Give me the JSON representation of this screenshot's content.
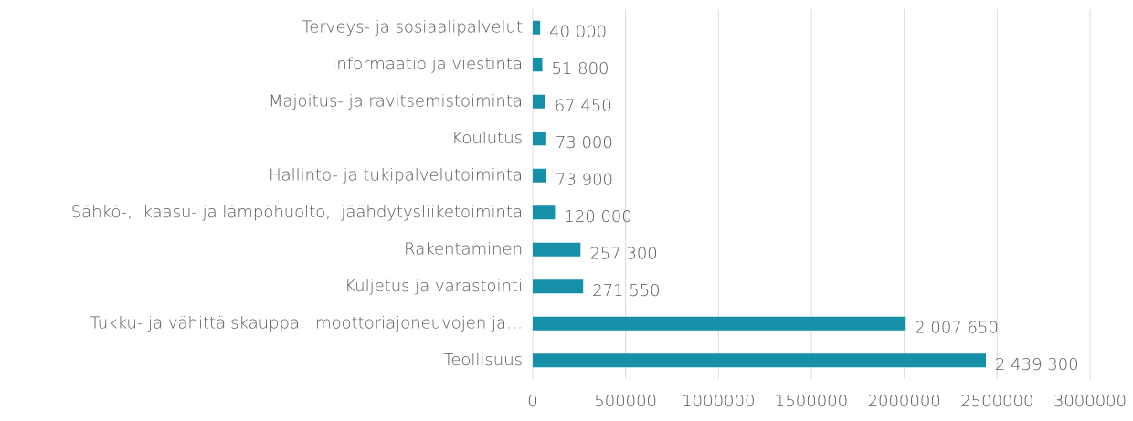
{
  "chart_data": {
    "type": "hbar",
    "categories": [
      "Terveys- ja sosiaalipalvelut",
      "Informaatio ja viestintä",
      "Majoitus- ja ravitsemistoiminta",
      "Koulutus",
      "Hallinto- ja tukipalvelutoiminta",
      "Sähkö-,  kaasu- ja lämpöhuolto,  jäähdytysliiketoiminta",
      "Rakentaminen",
      "Kuljetus ja varastointi",
      "Tukku- ja vähittäiskauppa,  moottoriajoneuvojen ja…",
      "Teollisuus"
    ],
    "values": [
      40000,
      51800,
      67450,
      73000,
      73900,
      120000,
      257300,
      271550,
      2007650,
      2439300
    ],
    "value_labels": [
      "40 000",
      "51 800",
      "67 450",
      "73 000",
      "73 900",
      "120 000",
      "257 300",
      "271 550",
      "2 007 650",
      "2 439 300"
    ],
    "color": "#1590a8",
    "xlim": [
      0,
      3000000
    ],
    "xticks": [
      0,
      500000,
      1000000,
      1500000,
      2000000,
      2500000,
      3000000
    ],
    "grid": true
  }
}
